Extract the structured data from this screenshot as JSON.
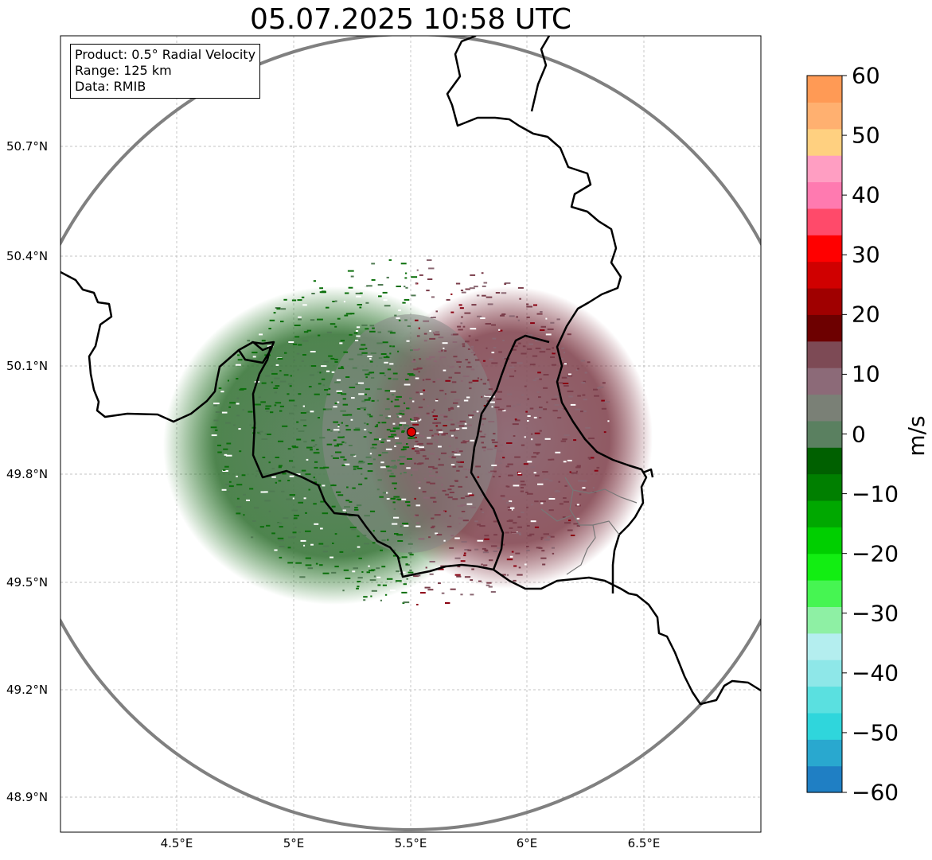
{
  "title": "05.07.2025 10:58 UTC",
  "info_box": {
    "product": "Product: 0.5° Radial Velocity",
    "range": "Range: 125 km",
    "data": "Data: RMIB"
  },
  "map": {
    "lat_labels": [
      "50.7°N",
      "50.4°N",
      "50.1°N",
      "49.8°N",
      "49.5°N",
      "49.2°N",
      "48.9°N"
    ],
    "lon_labels": [
      "4.5°E",
      "5°E",
      "5.5°E",
      "6°E",
      "6.5°E"
    ],
    "radar_site": {
      "lon": 5.505,
      "lat": 49.914
    },
    "range_ring_km": 125,
    "extent": {
      "lon_min": 4.0,
      "lon_max": 7.0,
      "lat_min": 48.8,
      "lat_max": 51.0
    },
    "colors": {
      "border": "#000000",
      "ring": "#808080",
      "grid": "#b0b0b0",
      "site": "#e00000"
    }
  },
  "colorbar": {
    "unit": "m/s",
    "ticks": [
      "60",
      "50",
      "40",
      "30",
      "20",
      "10",
      "0",
      "−10",
      "−20",
      "−30",
      "−40",
      "−50",
      "−60"
    ],
    "min": -60,
    "max": 60,
    "stops": [
      "#1f7fc4",
      "#29a8cf",
      "#2fd6dc",
      "#5ae0e0",
      "#8ee7e8",
      "#b4eeef",
      "#8ef0a4",
      "#46f552",
      "#12ee12",
      "#00cf00",
      "#00a800",
      "#007f00",
      "#006000",
      "#5a8060",
      "#7a8076",
      "#8c6a78",
      "#7d4a55",
      "#6d0000",
      "#a00000",
      "#d00000",
      "#ff0000",
      "#ff4a6a",
      "#ff7ab0",
      "#ff9ec2",
      "#ffd080",
      "#ffb070",
      "#ff9a55"
    ]
  }
}
